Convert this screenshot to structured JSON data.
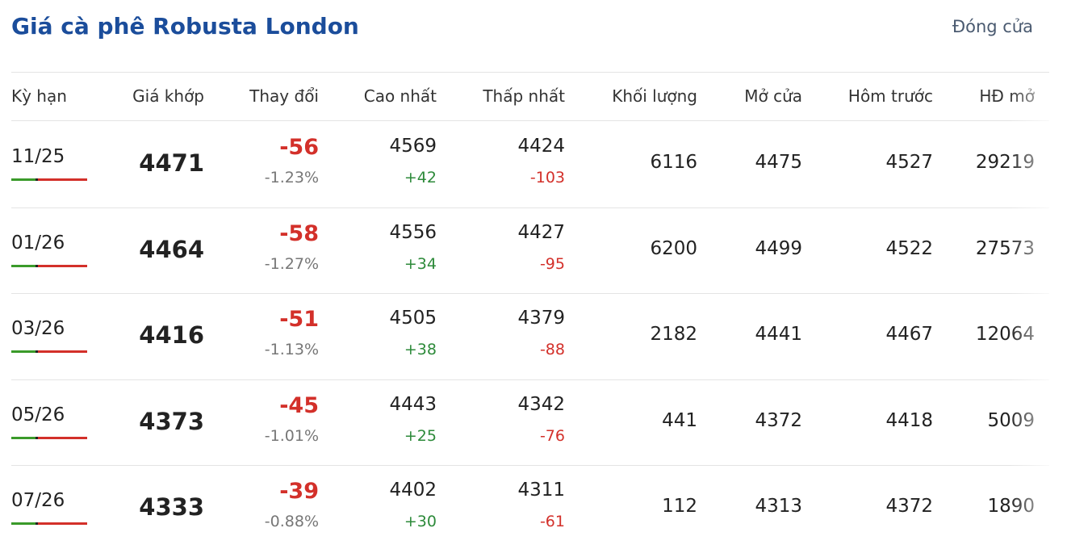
{
  "header": {
    "title": "Giá cà phê Robusta London",
    "status": "Đóng cửa"
  },
  "table": {
    "columns": [
      "Kỳ hạn",
      "Giá khớp",
      "Thay đổi",
      "Cao nhất",
      "Thấp nhất",
      "Khối lượng",
      "Mở cửa",
      "Hôm trước",
      "HĐ mở"
    ],
    "rows": [
      {
        "term": "11/25",
        "price": "4471",
        "change": "-56",
        "change_pct": "-1.23%",
        "high": "4569",
        "high_diff": "+42",
        "low": "4424",
        "low_diff": "-103",
        "volume": "6116",
        "open": "4475",
        "prev": "4527",
        "open_interest": "29219"
      },
      {
        "term": "01/26",
        "price": "4464",
        "change": "-58",
        "change_pct": "-1.27%",
        "high": "4556",
        "high_diff": "+34",
        "low": "4427",
        "low_diff": "-95",
        "volume": "6200",
        "open": "4499",
        "prev": "4522",
        "open_interest": "27573"
      },
      {
        "term": "03/26",
        "price": "4416",
        "change": "-51",
        "change_pct": "-1.13%",
        "high": "4505",
        "high_diff": "+38",
        "low": "4379",
        "low_diff": "-88",
        "volume": "2182",
        "open": "4441",
        "prev": "4467",
        "open_interest": "12064"
      },
      {
        "term": "05/26",
        "price": "4373",
        "change": "-45",
        "change_pct": "-1.01%",
        "high": "4443",
        "high_diff": "+25",
        "low": "4342",
        "low_diff": "-76",
        "volume": "441",
        "open": "4372",
        "prev": "4418",
        "open_interest": "5009"
      },
      {
        "term": "07/26",
        "price": "4333",
        "change": "-39",
        "change_pct": "-0.88%",
        "high": "4402",
        "high_diff": "+30",
        "low": "4311",
        "low_diff": "-61",
        "volume": "112",
        "open": "4313",
        "prev": "4372",
        "open_interest": "1890"
      }
    ]
  }
}
